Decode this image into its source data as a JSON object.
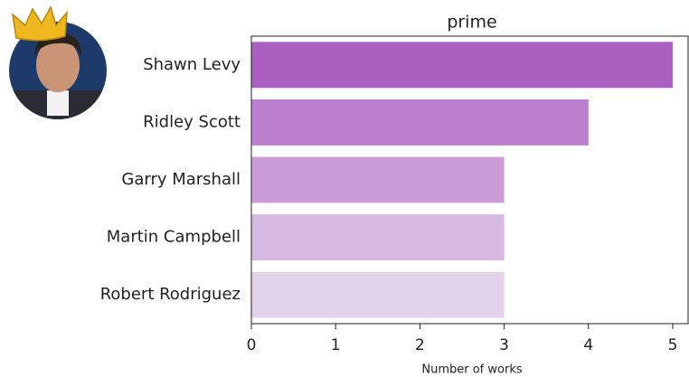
{
  "chart_data": {
    "type": "barh",
    "title": "prime",
    "xlabel": "Number of works",
    "categories": [
      "Shawn Levy",
      "Ridley Scott",
      "Garry Marshall",
      "Martin Campbell",
      "Robert Rodriguez"
    ],
    "values": [
      5,
      4,
      3,
      3,
      3
    ],
    "colors": [
      "#ab5fc0",
      "#bc7fcd",
      "#c99cd7",
      "#d7b8e1",
      "#e3d3ea"
    ],
    "xlim": [
      0,
      5.2
    ],
    "xticks": [
      0,
      1,
      2,
      3,
      4,
      5
    ]
  }
}
